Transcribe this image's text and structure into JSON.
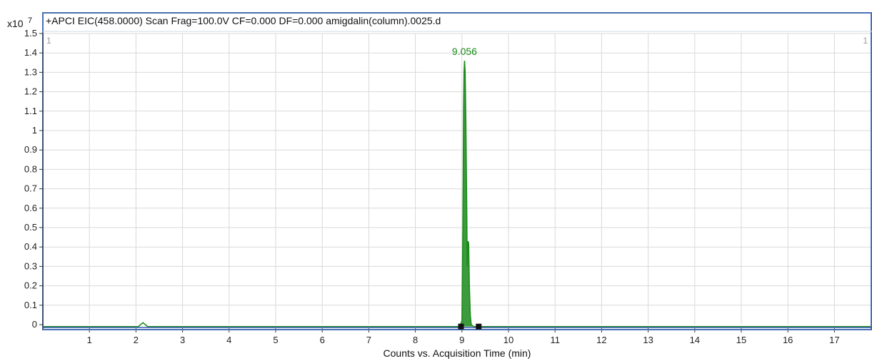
{
  "chart_data": {
    "type": "line",
    "title": "+APCI EIC(458.0000) Scan Frag=100.0V CF=0.000 DF=0.000 amigdalin(column).0025.d",
    "xlabel": "Counts vs. Acquisition Time (min)",
    "y_multiplier": {
      "base": "x10",
      "exponent": "7"
    },
    "panel_labels": {
      "left": "1",
      "right": "1"
    },
    "xlim": [
      0,
      17.85
    ],
    "ylim": [
      0,
      1.5
    ],
    "x_ticks": [
      1,
      2,
      3,
      4,
      5,
      6,
      7,
      8,
      9,
      10,
      11,
      12,
      13,
      14,
      15,
      16,
      17
    ],
    "y_ticks": [
      "0",
      "0.1",
      "0.2",
      "0.3",
      "0.4",
      "0.5",
      "0.6",
      "0.7",
      "0.8",
      "0.9",
      "1",
      "1.1",
      "1.2",
      "1.3",
      "1.4",
      "1.5"
    ],
    "grid": true,
    "series": [
      {
        "color": "#1a8a1a",
        "x": [
          0.0,
          2.05,
          2.1,
          2.15,
          2.2,
          2.25,
          2.3,
          8.95,
          9.0,
          9.02,
          9.035,
          9.045,
          9.056,
          9.07,
          9.085,
          9.1,
          9.115,
          9.13,
          9.145,
          9.16,
          9.18,
          9.2,
          9.25,
          9.35,
          17.85
        ],
        "y": [
          -0.01,
          -0.01,
          0.0,
          0.01,
          0.0,
          -0.01,
          -0.01,
          -0.01,
          0.02,
          0.5,
          1.1,
          1.3,
          1.36,
          1.3,
          1.05,
          0.7,
          0.3,
          0.43,
          0.42,
          0.2,
          0.05,
          0.0,
          -0.01,
          -0.01,
          -0.01
        ]
      }
    ],
    "peak_annotation": {
      "x": 9.056,
      "y": 1.36,
      "label": "9.056"
    },
    "integration_markers": [
      8.98,
      9.36
    ],
    "accent_colors": {
      "frame": "#4a6fb5",
      "baseline": "#3a5ab0",
      "trace": "#1a8a1a",
      "marker": "#111111"
    }
  }
}
